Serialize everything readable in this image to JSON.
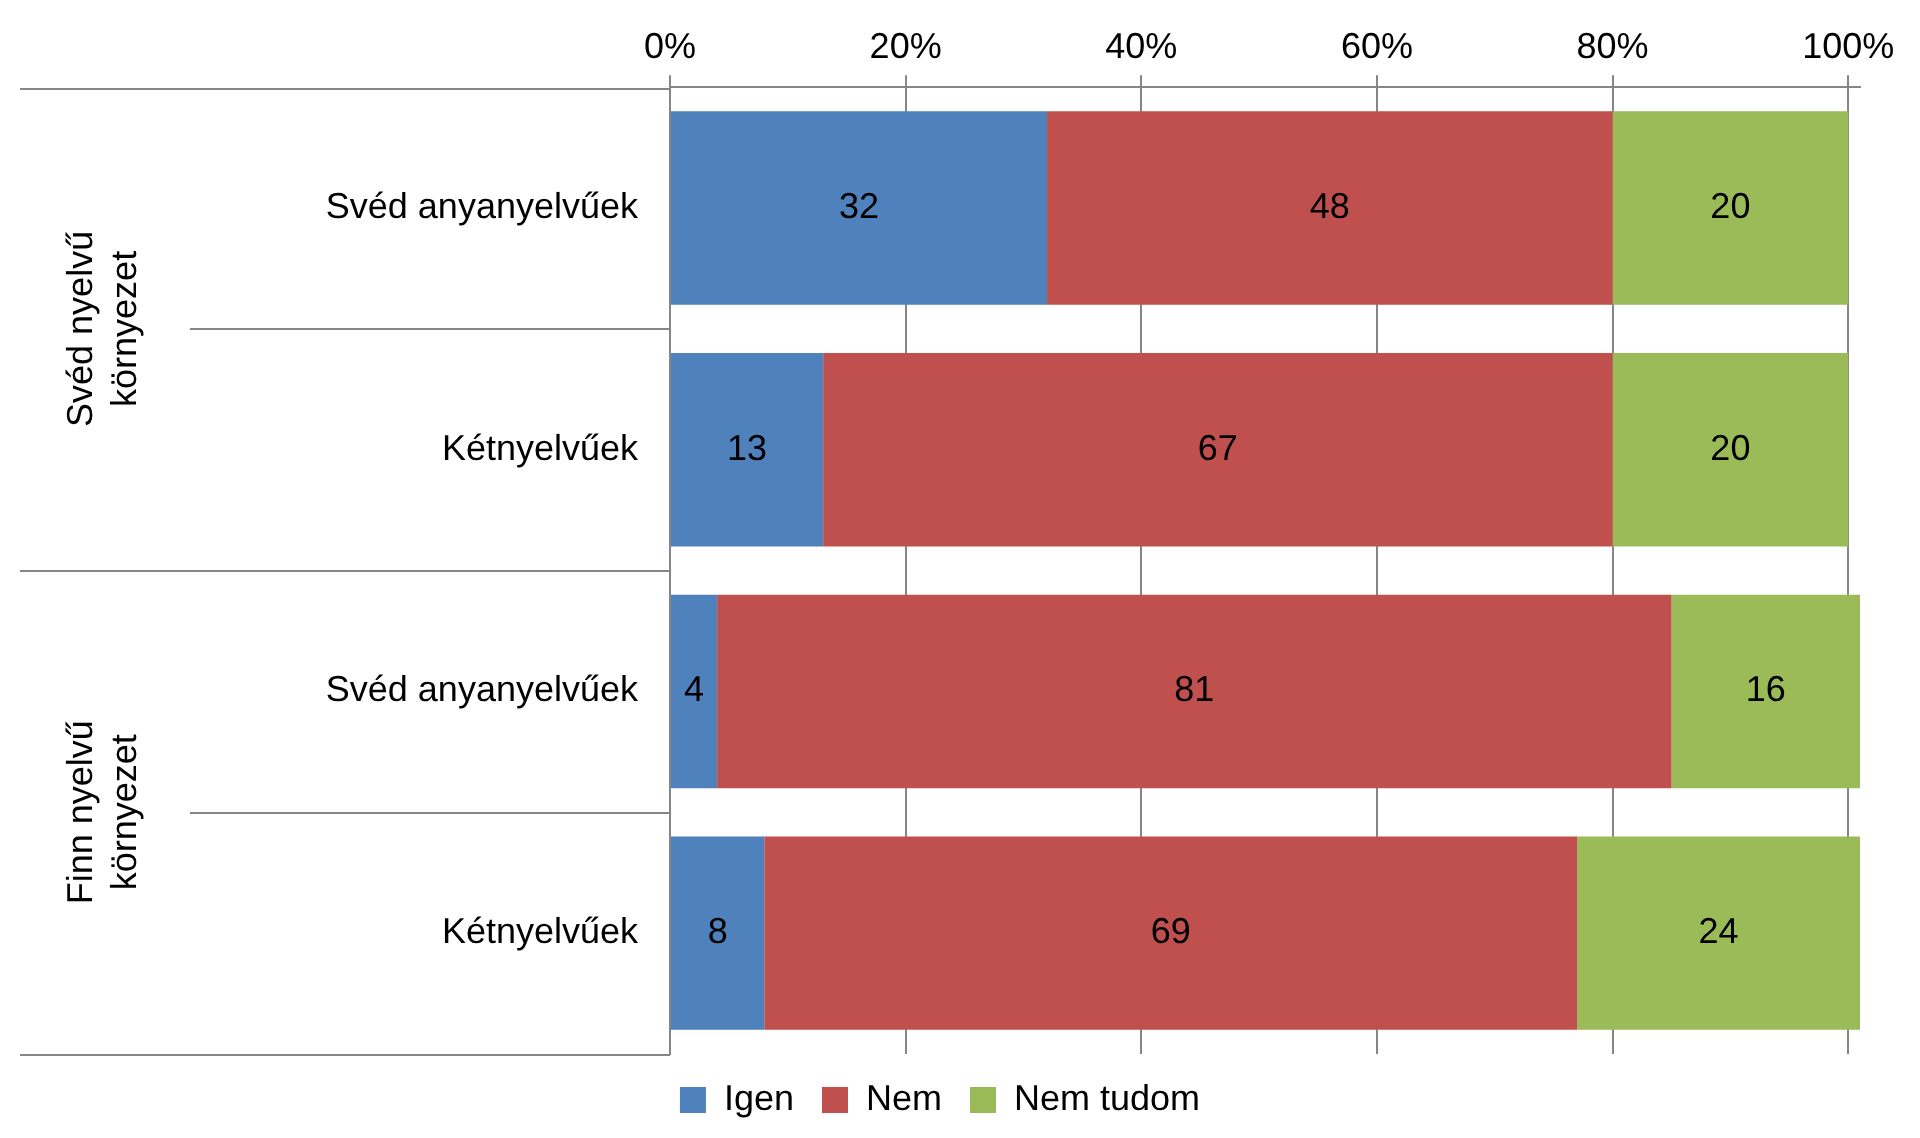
{
  "chart_data": {
    "type": "bar",
    "orientation": "horizontal",
    "stacked": true,
    "categories": [
      "Svéd anyanyelvűek",
      "Kétnyelvűek",
      "Svéd anyanyelvűek",
      "Kétnyelvűek"
    ],
    "series": [
      {
        "name": "Igen",
        "color": "#4f81bd",
        "values": [
          32,
          13,
          4,
          8
        ]
      },
      {
        "name": "Nem",
        "color": "#c0504d",
        "values": [
          48,
          67,
          81,
          69
        ]
      },
      {
        "name": "Nem tudom",
        "color": "#9bbb59",
        "values": [
          20,
          20,
          16,
          24
        ]
      }
    ],
    "xlim": [
      0,
      101
    ],
    "xticks": [
      {
        "value": 0,
        "label": "0%"
      },
      {
        "value": 20,
        "label": "20%"
      },
      {
        "value": 40,
        "label": "40%"
      },
      {
        "value": 60,
        "label": "60%"
      },
      {
        "value": 80,
        "label": "80%"
      },
      {
        "value": 100,
        "label": "100%"
      }
    ],
    "annotations": [
      "Svéd nyelvű környezet",
      "Finn nyelvű környezet"
    ],
    "data_labels": true,
    "grid": "x",
    "legend": "bottom"
  }
}
